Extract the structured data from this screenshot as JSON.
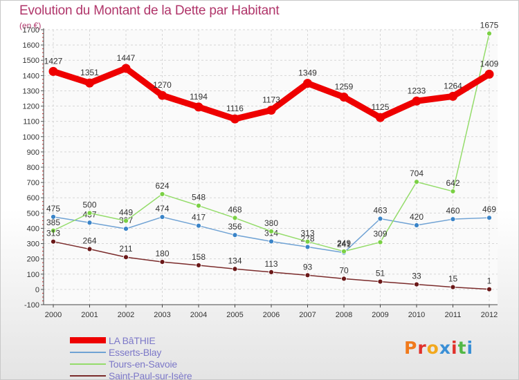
{
  "header": {
    "title": "Evolution du Montant de la Dette par Habitant",
    "subtitle": "(en €)"
  },
  "logo": {
    "text": "Proxiti",
    "letter_colors": [
      "#f07a1c",
      "#e0312b",
      "#f2a81d",
      "#3a8fd6",
      "#e0312b",
      "#53b847",
      "#3a8fd6"
    ]
  },
  "chart_data": {
    "type": "line",
    "title": "Evolution du Montant de la Dette par Habitant",
    "subtitle": "(en €)",
    "xlabel": "",
    "ylabel": "",
    "x": [
      "2000",
      "2001",
      "2002",
      "2003",
      "2004",
      "2005",
      "2006",
      "2007",
      "2008",
      "2009",
      "2010",
      "2011",
      "2012"
    ],
    "ylim": [
      -100,
      1700
    ],
    "yticks": [
      -100,
      0,
      100,
      200,
      300,
      400,
      500,
      600,
      700,
      800,
      900,
      1000,
      1100,
      1200,
      1300,
      1400,
      1500,
      1600,
      1700
    ],
    "grid": true,
    "legend": "bottom-left",
    "series": [
      {
        "name": "LA BâTHIE",
        "color": "#ee0000",
        "marker": "#ee0000",
        "bold": true,
        "values": [
          1427,
          1351,
          1447,
          1270,
          1194,
          1116,
          1173,
          1349,
          1259,
          1125,
          1233,
          1264,
          1409
        ]
      },
      {
        "name": "Esserts-Blay",
        "color": "#6fa2d4",
        "marker": "#3a84c8",
        "bold": false,
        "values": [
          475,
          437,
          397,
          474,
          417,
          356,
          314,
          278,
          241,
          463,
          420,
          460,
          469
        ]
      },
      {
        "name": "Tours-en-Savoie",
        "color": "#94dc6a",
        "marker": "#7ad044",
        "bold": false,
        "values": [
          385,
          500,
          449,
          624,
          548,
          468,
          380,
          313,
          249,
          309,
          704,
          642,
          1675
        ]
      },
      {
        "name": "Saint-Paul-sur-Isère",
        "color": "#7a2a2a",
        "marker": "#6a1818",
        "bold": false,
        "values": [
          313,
          264,
          211,
          180,
          158,
          134,
          113,
          93,
          70,
          51,
          33,
          15,
          1
        ]
      }
    ]
  }
}
